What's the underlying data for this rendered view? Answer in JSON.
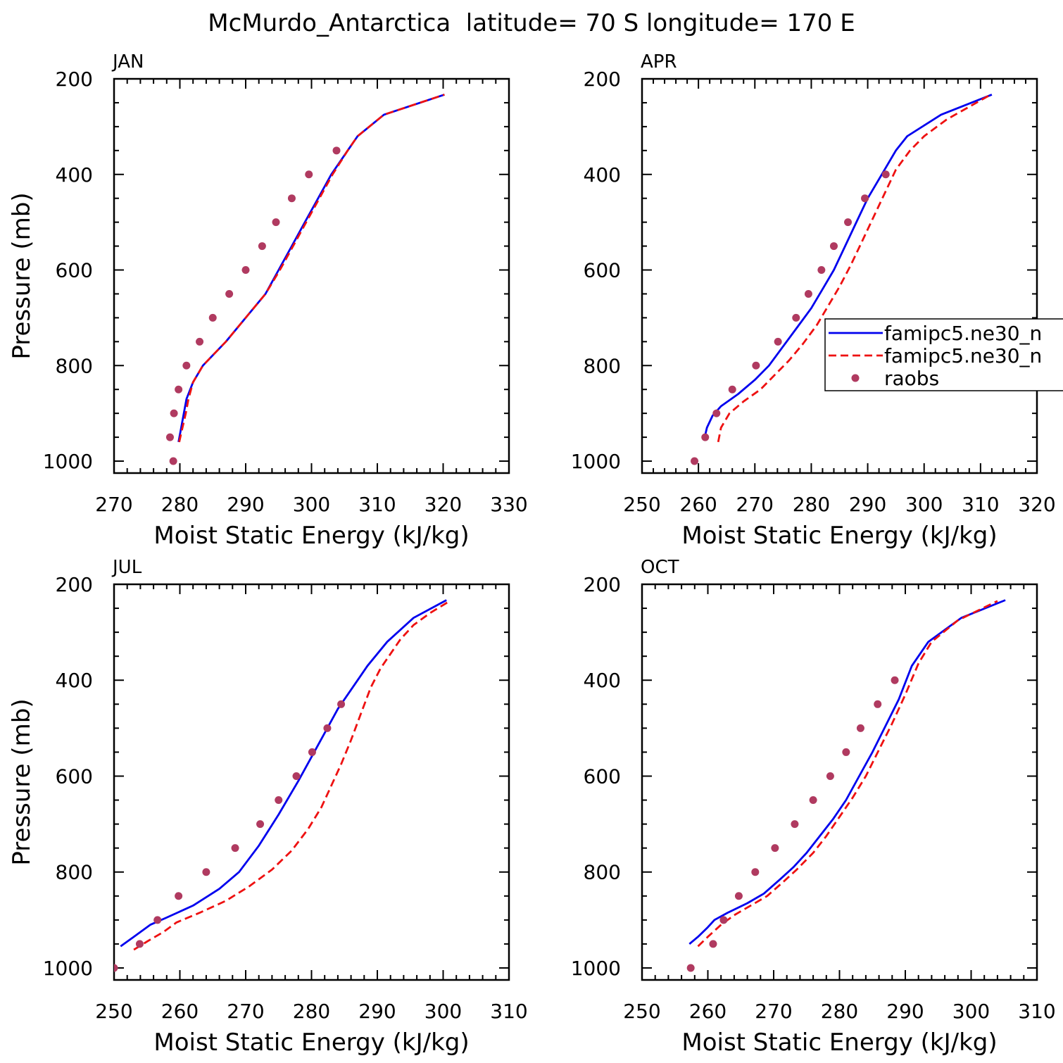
{
  "title": "McMurdo_Antarctica  latitude= 70 S longitude= 170 E",
  "colors": {
    "model_a": "#0000ee",
    "model_b": "#ee1111",
    "obs": "#b03a60",
    "axis": "#000000"
  },
  "legend": {
    "entries": [
      {
        "label": "famipc5.ne30_n",
        "style": "solid",
        "color": "#0000ee"
      },
      {
        "label": "famipc5.ne30_n",
        "style": "dashed",
        "color": "#ee1111"
      },
      {
        "label": "raobs",
        "style": "marker",
        "color": "#b03a60"
      }
    ]
  },
  "chart_data": [
    {
      "type": "line",
      "panel": "JAN",
      "xlabel": "Moist Static Energy (kJ/kg)",
      "ylabel": "Pressure (mb)",
      "xlim": [
        270,
        330
      ],
      "ylim": [
        200,
        1025
      ],
      "y_inverted": true,
      "xticks": [
        270,
        280,
        290,
        300,
        310,
        320,
        330
      ],
      "yticks": [
        200,
        400,
        600,
        800,
        1000
      ],
      "series": [
        {
          "style": "solid",
          "color": "#0000ee",
          "points": [
            [
              279.8,
              960
            ],
            [
              280.2,
              930
            ],
            [
              280.6,
              900
            ],
            [
              281,
              870
            ],
            [
              282,
              835
            ],
            [
              283.5,
              800
            ],
            [
              287,
              750
            ],
            [
              290,
              700
            ],
            [
              293,
              650
            ],
            [
              295,
              600
            ],
            [
              297,
              550
            ],
            [
              299,
              500
            ],
            [
              301,
              450
            ],
            [
              303,
              400
            ],
            [
              305.5,
              350
            ],
            [
              307,
              320
            ],
            [
              311,
              275
            ],
            [
              320.2,
              233
            ]
          ]
        },
        {
          "style": "dashed",
          "color": "#ee1111",
          "points": [
            [
              279.9,
              960
            ],
            [
              280.4,
              930
            ],
            [
              280.9,
              900
            ],
            [
              281.3,
              870
            ],
            [
              282,
              835
            ],
            [
              283.5,
              800
            ],
            [
              287,
              750
            ],
            [
              290,
              700
            ],
            [
              293,
              650
            ],
            [
              295.2,
              600
            ],
            [
              297.2,
              550
            ],
            [
              299.2,
              500
            ],
            [
              301.2,
              450
            ],
            [
              303.2,
              400
            ],
            [
              305.5,
              350
            ],
            [
              307,
              320
            ],
            [
              311,
              275
            ],
            [
              320.2,
              233
            ]
          ]
        },
        {
          "style": "marker",
          "color": "#b03a60",
          "points": [
            [
              279,
              1000
            ],
            [
              278.5,
              950
            ],
            [
              279.1,
              900
            ],
            [
              279.8,
              850
            ],
            [
              281,
              800
            ],
            [
              283,
              750
            ],
            [
              285,
              700
            ],
            [
              287.5,
              650
            ],
            [
              290,
              600
            ],
            [
              292.5,
              550
            ],
            [
              294.6,
              500
            ],
            [
              297,
              450
            ],
            [
              299.6,
              400
            ],
            [
              303.8,
              350
            ]
          ]
        }
      ]
    },
    {
      "type": "line",
      "panel": "APR",
      "xlabel": "Moist Static Energy (kJ/kg)",
      "ylabel": "Pressure (mb)",
      "xlim": [
        250,
        320
      ],
      "ylim": [
        200,
        1025
      ],
      "y_inverted": true,
      "xticks": [
        250,
        260,
        270,
        280,
        290,
        300,
        310,
        320
      ],
      "yticks": [
        200,
        400,
        600,
        800,
        1000
      ],
      "series": [
        {
          "style": "solid",
          "color": "#0000ee",
          "points": [
            [
              261,
              955
            ],
            [
              261.5,
              930
            ],
            [
              262.5,
              905
            ],
            [
              264,
              885
            ],
            [
              267,
              860
            ],
            [
              270,
              830
            ],
            [
              272.5,
              800
            ],
            [
              275,
              760
            ],
            [
              277.5,
              720
            ],
            [
              280,
              680
            ],
            [
              282,
              640
            ],
            [
              284,
              600
            ],
            [
              286,
              550
            ],
            [
              288,
              500
            ],
            [
              290,
              450
            ],
            [
              292.5,
              400
            ],
            [
              295,
              350
            ],
            [
              297,
              320
            ],
            [
              303,
              275
            ],
            [
              312,
              233
            ]
          ]
        },
        {
          "style": "dashed",
          "color": "#ee1111",
          "points": [
            [
              263.5,
              960
            ],
            [
              264,
              930
            ],
            [
              265.5,
              900
            ],
            [
              268,
              875
            ],
            [
              271,
              850
            ],
            [
              273.5,
              820
            ],
            [
              276,
              790
            ],
            [
              278.5,
              755
            ],
            [
              281,
              715
            ],
            [
              283,
              675
            ],
            [
              285,
              635
            ],
            [
              287,
              590
            ],
            [
              289,
              540
            ],
            [
              291,
              490
            ],
            [
              293,
              440
            ],
            [
              295,
              390
            ],
            [
              297.5,
              350
            ],
            [
              300,
              320
            ],
            [
              304,
              285
            ],
            [
              311.5,
              235
            ]
          ]
        },
        {
          "style": "marker",
          "color": "#b03a60",
          "points": [
            [
              259.3,
              1000
            ],
            [
              261.2,
              950
            ],
            [
              263.2,
              900
            ],
            [
              266,
              850
            ],
            [
              270.2,
              800
            ],
            [
              274.1,
              750
            ],
            [
              277.3,
              700
            ],
            [
              279.5,
              650
            ],
            [
              281.8,
              600
            ],
            [
              284,
              550
            ],
            [
              286.5,
              500
            ],
            [
              289.5,
              450
            ],
            [
              293.2,
              400
            ]
          ]
        }
      ]
    },
    {
      "type": "line",
      "panel": "JUL",
      "xlabel": "Moist Static Energy (kJ/kg)",
      "ylabel": "Pressure (mb)",
      "xlim": [
        250,
        310
      ],
      "ylim": [
        200,
        1025
      ],
      "y_inverted": true,
      "xticks": [
        250,
        260,
        270,
        280,
        290,
        300,
        310
      ],
      "yticks": [
        200,
        400,
        600,
        800,
        1000
      ],
      "series": [
        {
          "style": "solid",
          "color": "#0000ee",
          "points": [
            [
              251,
              955
            ],
            [
              253,
              935
            ],
            [
              255.5,
              910
            ],
            [
              258,
              895
            ],
            [
              262,
              870
            ],
            [
              266,
              835
            ],
            [
              269,
              800
            ],
            [
              272,
              745
            ],
            [
              275,
              680
            ],
            [
              278,
              610
            ],
            [
              281,
              535
            ],
            [
              284,
              460
            ],
            [
              286.5,
              410
            ],
            [
              288.5,
              370
            ],
            [
              291.5,
              320
            ],
            [
              295.5,
              270
            ],
            [
              300.5,
              233
            ]
          ]
        },
        {
          "style": "dashed",
          "color": "#ee1111",
          "points": [
            [
              253,
              962
            ],
            [
              255,
              945
            ],
            [
              257.5,
              925
            ],
            [
              259.5,
              905
            ],
            [
              263,
              885
            ],
            [
              267,
              860
            ],
            [
              270.5,
              830
            ],
            [
              274,
              795
            ],
            [
              277,
              755
            ],
            [
              279.5,
              710
            ],
            [
              281.5,
              665
            ],
            [
              283,
              620
            ],
            [
              284.5,
              575
            ],
            [
              286,
              525
            ],
            [
              287.5,
              470
            ],
            [
              289,
              415
            ],
            [
              290.5,
              375
            ],
            [
              292,
              345
            ],
            [
              293.5,
              315
            ],
            [
              295.5,
              285
            ],
            [
              298,
              260
            ],
            [
              301,
              235
            ]
          ]
        },
        {
          "style": "marker",
          "color": "#b03a60",
          "points": [
            [
              250,
              1000
            ],
            [
              253.9,
              950
            ],
            [
              256.6,
              900
            ],
            [
              259.8,
              850
            ],
            [
              264,
              800
            ],
            [
              268.4,
              750
            ],
            [
              272.2,
              700
            ],
            [
              275,
              650
            ],
            [
              277.7,
              600
            ],
            [
              280.1,
              550
            ],
            [
              282.4,
              500
            ],
            [
              284.5,
              450
            ]
          ]
        }
      ]
    },
    {
      "type": "line",
      "panel": "OCT",
      "xlabel": "Moist Static Energy (kJ/kg)",
      "ylabel": "Pressure (mb)",
      "xlim": [
        250,
        310
      ],
      "ylim": [
        200,
        1025
      ],
      "y_inverted": true,
      "xticks": [
        250,
        260,
        270,
        280,
        290,
        300,
        310
      ],
      "yticks": [
        200,
        400,
        600,
        800,
        1000
      ],
      "series": [
        {
          "style": "solid",
          "color": "#0000ee",
          "points": [
            [
              257.2,
              950
            ],
            [
              258.5,
              935
            ],
            [
              260,
              915
            ],
            [
              261,
              900
            ],
            [
              263,
              885
            ],
            [
              266,
              865
            ],
            [
              268.5,
              845
            ],
            [
              271,
              815
            ],
            [
              273,
              790
            ],
            [
              275,
              760
            ],
            [
              277,
              725
            ],
            [
              279,
              690
            ],
            [
              281,
              650
            ],
            [
              283,
              600
            ],
            [
              285,
              550
            ],
            [
              287,
              495
            ],
            [
              289,
              440
            ],
            [
              291,
              370
            ],
            [
              293.5,
              320
            ],
            [
              298.5,
              270
            ],
            [
              305.2,
              233
            ]
          ]
        },
        {
          "style": "dashed",
          "color": "#ee1111",
          "points": [
            [
              258.5,
              955
            ],
            [
              260,
              935
            ],
            [
              262,
              910
            ],
            [
              264,
              890
            ],
            [
              266.5,
              870
            ],
            [
              269,
              850
            ],
            [
              271.5,
              820
            ],
            [
              273.5,
              795
            ],
            [
              276,
              760
            ],
            [
              278,
              725
            ],
            [
              280,
              685
            ],
            [
              282,
              645
            ],
            [
              284,
              600
            ],
            [
              286,
              545
            ],
            [
              288,
              490
            ],
            [
              290,
              430
            ],
            [
              292,
              365
            ],
            [
              294,
              320
            ],
            [
              298,
              275
            ],
            [
              304,
              235
            ]
          ]
        },
        {
          "style": "marker",
          "color": "#b03a60",
          "points": [
            [
              257.4,
              1000
            ],
            [
              260.8,
              950
            ],
            [
              262.4,
              900
            ],
            [
              264.7,
              850
            ],
            [
              267.2,
              800
            ],
            [
              270.2,
              750
            ],
            [
              273.2,
              700
            ],
            [
              276,
              650
            ],
            [
              278.6,
              600
            ],
            [
              281,
              550
            ],
            [
              283.2,
              500
            ],
            [
              285.8,
              450
            ],
            [
              288.4,
              400
            ]
          ]
        }
      ]
    }
  ]
}
